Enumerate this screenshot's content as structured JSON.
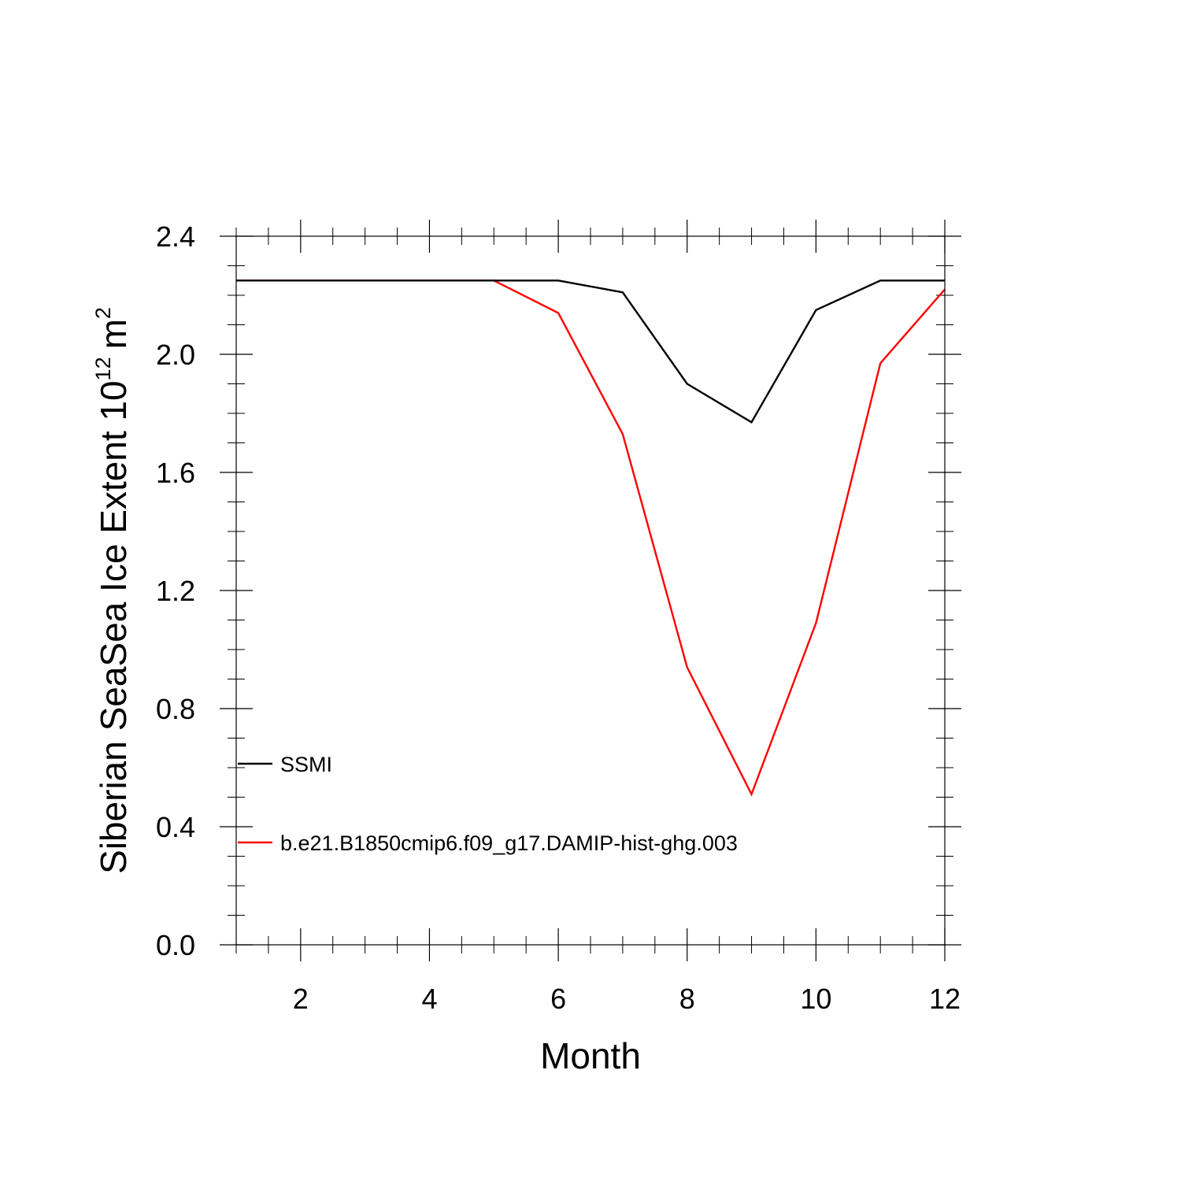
{
  "chart_data": {
    "type": "line",
    "title": "",
    "xlabel": "Month",
    "ylabel": {
      "text": "Siberian SeaSea Ice Extent 10",
      "exponent": "12",
      "unit": "m",
      "unit_exponent": "2"
    },
    "xlim": [
      1,
      12
    ],
    "ylim": [
      0.0,
      2.4
    ],
    "x_ticks": [
      2,
      4,
      6,
      8,
      10,
      12
    ],
    "x_tick_labels": [
      "2",
      "4",
      "6",
      "8",
      "10",
      "12"
    ],
    "y_ticks": [
      0.0,
      0.4,
      0.8,
      1.2,
      1.6,
      2.0,
      2.4
    ],
    "y_tick_labels": [
      "0.0",
      "0.4",
      "0.8",
      "1.2",
      "1.6",
      "2.0",
      "2.4"
    ],
    "x_minor_step": 0.5,
    "y_minor_step": 0.1,
    "grid": false,
    "legend_position": "lower-left",
    "x": [
      1,
      2,
      3,
      4,
      5,
      6,
      7,
      8,
      9,
      10,
      11,
      12
    ],
    "series": [
      {
        "name": "SSMI",
        "color": "#000000",
        "values": [
          2.25,
          2.25,
          2.25,
          2.25,
          2.25,
          2.25,
          2.21,
          1.9,
          1.77,
          2.15,
          2.25,
          2.25
        ]
      },
      {
        "name": "b.e21.B1850cmip6.f09_g17.DAMIP-hist-ghg.003",
        "color": "#ff0000",
        "values": [
          2.25,
          2.25,
          2.25,
          2.25,
          2.25,
          2.14,
          1.73,
          0.94,
          0.51,
          1.09,
          1.97,
          2.22
        ]
      }
    ]
  }
}
